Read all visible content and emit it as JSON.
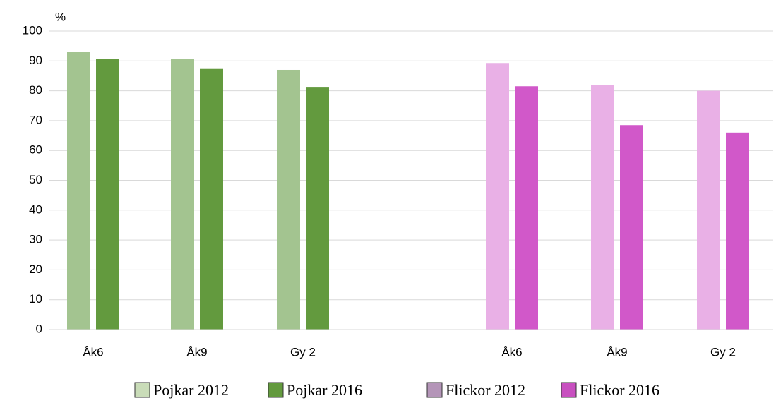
{
  "chart_data": {
    "type": "bar",
    "y_label": "%",
    "categories": [
      "Åk6",
      "Åk9",
      "Gy 2",
      "Åk6",
      "Åk9",
      "Gy 2"
    ],
    "series": [
      {
        "name": "Pojkar 2012",
        "color": "#a3c490",
        "legend_color": "#c9dcb8",
        "values": [
          93,
          90.7,
          87,
          null,
          null,
          null
        ]
      },
      {
        "name": "Pojkar 2016",
        "color": "#639a3e",
        "legend_color": "#639a3e",
        "values": [
          90.7,
          87.3,
          81.3,
          null,
          null,
          null
        ]
      },
      {
        "name": "Flickor 2012",
        "color": "#e9b0e6",
        "legend_color": "#b495b8",
        "values": [
          null,
          null,
          null,
          89.3,
          82,
          80
        ]
      },
      {
        "name": "Flickor 2016",
        "color": "#d158c9",
        "legend_color": "#c850c0",
        "values": [
          null,
          null,
          null,
          81.5,
          68.5,
          66
        ]
      }
    ],
    "ylim": [
      0,
      100
    ],
    "yticks": [
      0,
      10,
      20,
      30,
      40,
      50,
      60,
      70,
      80,
      90,
      100
    ],
    "grid": true
  }
}
